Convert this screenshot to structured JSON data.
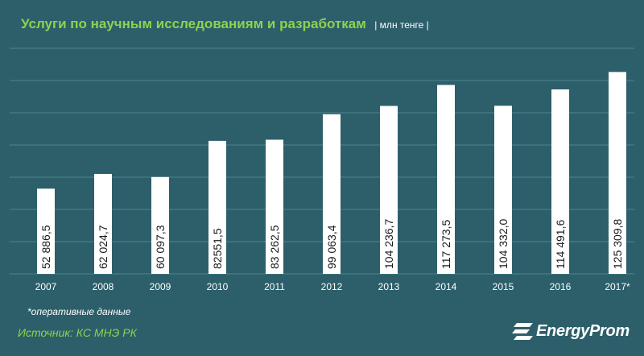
{
  "header": {
    "title": "Услуги по научным исследованиям и разработкам",
    "unit": "| млн тенге |"
  },
  "chart_data": {
    "type": "bar",
    "title": "Услуги по научным исследованиям и разработкам",
    "unit": "млн тенге",
    "categories": [
      "2007",
      "2008",
      "2009",
      "2010",
      "2011",
      "2012",
      "2013",
      "2014",
      "2015",
      "2016",
      "2017*"
    ],
    "values": [
      52886.5,
      62024.7,
      60097.3,
      82551.5,
      83262.5,
      99063.4,
      104236.7,
      117273.5,
      104332.0,
      114491.6,
      125309.8
    ],
    "value_labels": [
      "52 886,5",
      "62 024,7",
      "60 097,3",
      "82551,5",
      "83 262,5",
      "99 063,4",
      "104 236,7",
      "117 273,5",
      "104 332,0",
      "114 491,6",
      "125 309,8"
    ],
    "ylim": [
      0,
      140000
    ],
    "grid": true,
    "bar_color": "#ffffff",
    "label_color": "#1a1a1a"
  },
  "footnote": "*оперативные данные",
  "source": "Источник: КС МНЭ РК",
  "logo": {
    "text": "EnergyProm"
  },
  "colors": {
    "background": "#2c5f6a",
    "accent": "#8fd14f",
    "grid": "#4e8590"
  }
}
